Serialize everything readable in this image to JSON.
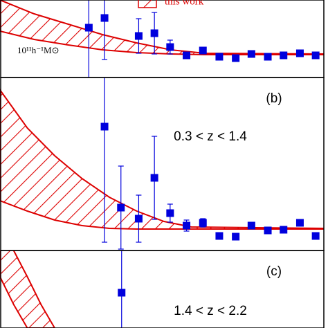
{
  "chart_data": [
    {
      "type": "scatter",
      "legend": "this work",
      "label": "10¹¹h⁻¹M⊙",
      "xlim": [
        0,
        474
      ],
      "ylim": [
        0,
        112
      ],
      "color": "#0000dd",
      "model_color": "#dd0000",
      "x": [
        130,
        153,
        203,
        226,
        249,
        273,
        297,
        321,
        345,
        368,
        392,
        415,
        439,
        462
      ],
      "values": [
        72,
        86,
        60,
        64,
        44,
        32,
        39,
        30,
        28,
        34,
        30,
        32,
        35,
        32
      ],
      "errors": [
        80,
        60,
        25,
        30,
        10,
        0,
        4,
        0,
        0,
        0,
        0,
        0,
        0,
        0
      ],
      "band": {
        "x": [
          0,
          50,
          100,
          150,
          200,
          250,
          300,
          474
        ],
        "upper": [
          112,
          92,
          77,
          62,
          50,
          40,
          35,
          34
        ],
        "lower": [
          67,
          55,
          47,
          40,
          36,
          34,
          33,
          33
        ]
      }
    },
    {
      "type": "scatter",
      "panel": "(b)",
      "label": "0.3 < z < 1.4",
      "xlim": [
        0,
        474
      ],
      "ylim": [
        0,
        250
      ],
      "color": "#0000dd",
      "model_color": "#dd0000",
      "x": [
        153,
        177,
        203,
        226,
        249,
        273,
        297,
        321,
        345,
        368,
        392,
        415,
        439,
        462
      ],
      "values": [
        179,
        62,
        46,
        105,
        54,
        36,
        40,
        21,
        20,
        36,
        29,
        30,
        40,
        21
      ],
      "errors": [
        167,
        60,
        34,
        60,
        13,
        8,
        6,
        4,
        0,
        0,
        0,
        0,
        0,
        0
      ],
      "band": {
        "x": [
          0,
          40,
          80,
          120,
          160,
          200,
          240,
          280,
          474
        ],
        "upper": [
          232,
          177,
          137,
          104,
          77,
          57,
          42,
          34,
          32
        ],
        "lower": [
          72,
          57,
          44,
          36,
          32,
          31,
          31,
          31,
          31
        ]
      }
    },
    {
      "type": "scatter",
      "panel": "(c)",
      "label": "1.4 < z < 2.2",
      "xlim": [
        0,
        474
      ],
      "ylim": [
        0,
        112
      ],
      "color": "#0000dd",
      "model_color": "#dd0000",
      "x": [
        178
      ],
      "values": [
        51
      ],
      "errors": [
        70
      ],
      "band": {
        "x": [
          0,
          20,
          40,
          60,
          80
        ],
        "upper": [
          134,
          112,
          74,
          34,
          0
        ],
        "lower": [
          74,
          34,
          0,
          0,
          0
        ]
      }
    }
  ]
}
